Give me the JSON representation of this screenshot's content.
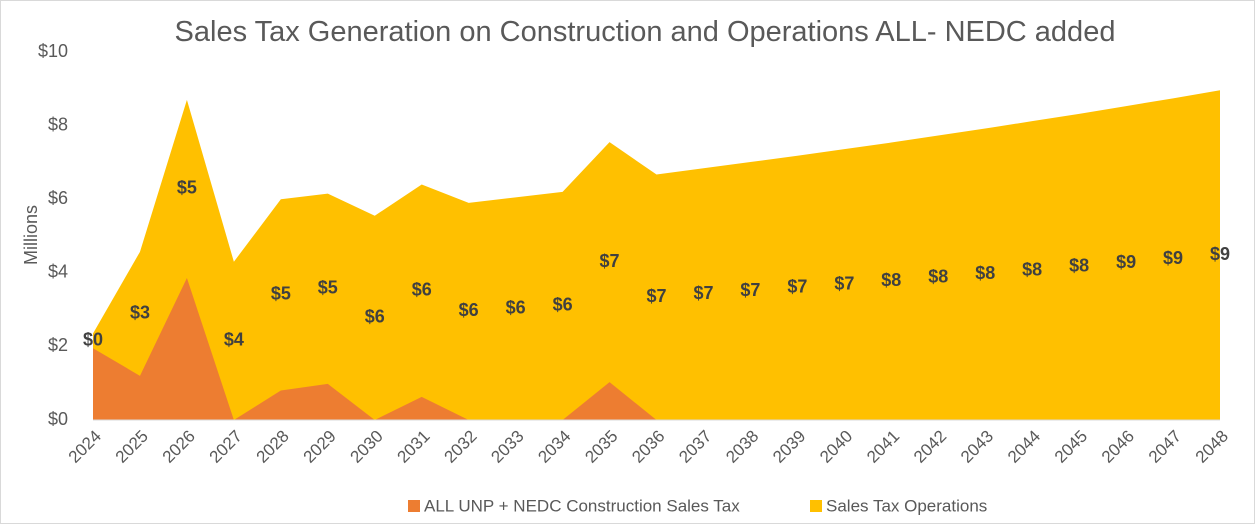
{
  "chart_data": {
    "type": "stacked-area",
    "title": "Sales Tax Generation on Construction and Operations ALL- NEDC added",
    "y_label": "Millions",
    "categories": [
      "2024",
      "2025",
      "2026",
      "2027",
      "2028",
      "2029",
      "2030",
      "2031",
      "2032",
      "2033",
      "2034",
      "2035",
      "2036",
      "2037",
      "2038",
      "2039",
      "2040",
      "2041",
      "2042",
      "2043",
      "2044",
      "2045",
      "2046",
      "2047",
      "2048"
    ],
    "series": [
      {
        "name": "ALL UNP + NEDC Construction Sales Tax",
        "color": "#ed7d31",
        "values": [
          1.95,
          1.2,
          3.86,
          0,
          0.8,
          0.98,
          0,
          0.63,
          0,
          0,
          0,
          1.03,
          0,
          0,
          0,
          0,
          0,
          0,
          0,
          0,
          0,
          0,
          0,
          0,
          0
        ]
      },
      {
        "name": "Sales Tax Operations",
        "color": "#ffc000",
        "values": [
          0.4,
          3.37,
          4.84,
          4.3,
          5.2,
          5.17,
          5.55,
          5.77,
          5.9,
          6.05,
          6.2,
          6.52,
          6.67,
          6.84,
          7.01,
          7.18,
          7.36,
          7.54,
          7.73,
          7.92,
          8.12,
          8.32,
          8.53,
          8.74,
          8.96
        ],
        "value_labels": [
          "$0",
          "$3",
          "$5",
          "$4",
          "$5",
          "$5",
          "$6",
          "$6",
          "$6",
          "$6",
          "$6",
          "$7",
          "$7",
          "$7",
          "$7",
          "$7",
          "$7",
          "$8",
          "$8",
          "$8",
          "$8",
          "$8",
          "$9",
          "$9",
          "$9"
        ]
      }
    ],
    "ylim": [
      0,
      10
    ],
    "yticks": [
      {
        "value": 0,
        "label": "$0"
      },
      {
        "value": 2,
        "label": "$2"
      },
      {
        "value": 4,
        "label": "$4"
      },
      {
        "value": 6,
        "label": "$6"
      },
      {
        "value": 8,
        "label": "$8"
      },
      {
        "value": 10,
        "label": "$10"
      }
    ],
    "legend": "bottom"
  }
}
